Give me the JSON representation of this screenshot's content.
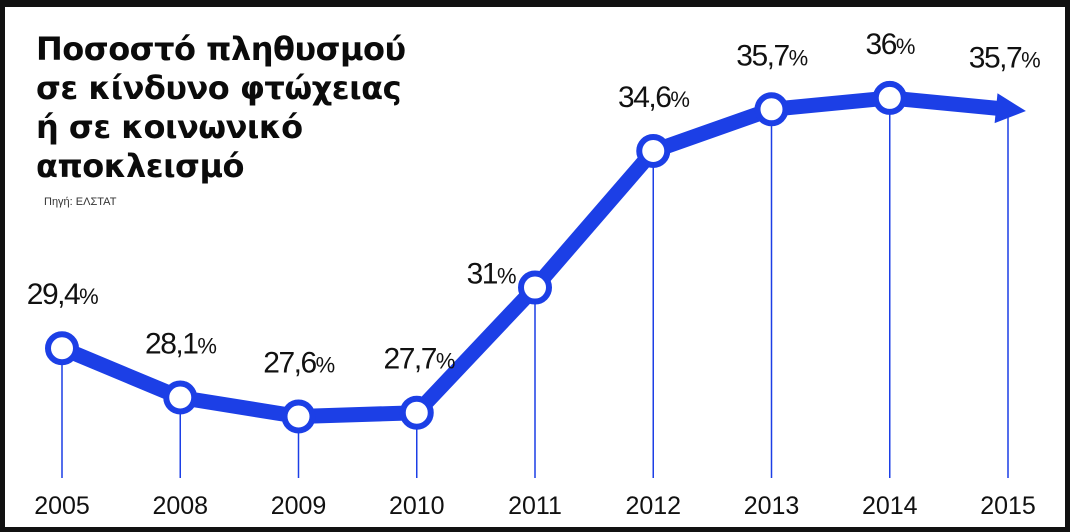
{
  "title_lines": [
    "Ποσοστό πληθυσμού",
    "σε κίνδυνο φτώχειας",
    "ή σε κοινωνικό",
    "αποκλεισμό"
  ],
  "source": "Πηγή: ΕΛΣΤΑΤ",
  "colors": {
    "line": "#1c3fe6",
    "marker_fill": "#ffffff",
    "marker_stroke": "#1c3fe6",
    "drop_line": "#1c3fe6",
    "text": "#111111"
  },
  "chart_data": {
    "type": "line",
    "title": "Ποσοστό πληθυσμού σε κίνδυνο φτώχειας ή σε κοινωνικό αποκλεισμό",
    "categories": [
      "2005",
      "2008",
      "2009",
      "2010",
      "2011",
      "2012",
      "2013",
      "2014",
      "2015"
    ],
    "values": [
      29.4,
      28.1,
      27.6,
      27.7,
      31,
      34.6,
      35.7,
      36,
      35.7
    ],
    "data_labels": [
      "29,4%",
      "28,1%",
      "27,6%",
      "27,7%",
      "31%",
      "34,6%",
      "35,7%",
      "36%",
      "35,7%"
    ],
    "ylim": [
      26.4,
      37.0
    ],
    "last_point_arrow": true,
    "grid": false
  }
}
